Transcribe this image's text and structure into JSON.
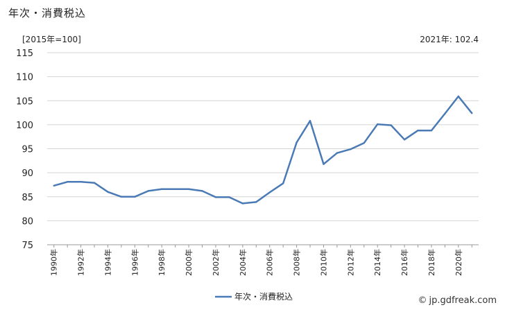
{
  "page_title": "年次・消費税込",
  "unit_label": "[2015年=100]",
  "latest_value_label": "2021年: 102.4",
  "credit": {
    "icon": "copyright-icon",
    "text": "jp.gdfreak.com"
  },
  "chart_data": {
    "type": "line",
    "title": "年次・消費税込",
    "xlabel": "",
    "ylabel": "",
    "ylim": [
      75,
      115
    ],
    "y_ticks": [
      75,
      80,
      85,
      90,
      95,
      100,
      105,
      110,
      115
    ],
    "x_tick_labels": [
      "1990年",
      "1992年",
      "1994年",
      "1996年",
      "1998年",
      "2000年",
      "2002年",
      "2004年",
      "2006年",
      "2008年",
      "2010年",
      "2012年",
      "2014年",
      "2016年",
      "2018年",
      "2020年"
    ],
    "grid": "horizontal",
    "legend": "bottom-center",
    "color": "#4a7ab5",
    "series": [
      {
        "name": "年次・消費税込",
        "x": [
          1990,
          1991,
          1992,
          1993,
          1994,
          1995,
          1996,
          1997,
          1998,
          1999,
          2000,
          2001,
          2002,
          2003,
          2004,
          2005,
          2006,
          2007,
          2008,
          2009,
          2010,
          2011,
          2012,
          2013,
          2014,
          2015,
          2016,
          2017,
          2018,
          2019,
          2020,
          2021
        ],
        "values": [
          87.3,
          88.1,
          88.1,
          87.9,
          86.0,
          85.0,
          85.0,
          86.2,
          86.6,
          86.6,
          86.6,
          86.2,
          84.9,
          84.9,
          83.6,
          83.9,
          85.9,
          87.8,
          96.3,
          100.8,
          91.8,
          94.1,
          94.9,
          96.2,
          100.1,
          99.9,
          96.9,
          98.8,
          98.8,
          102.3,
          105.9,
          102.4
        ]
      }
    ]
  }
}
